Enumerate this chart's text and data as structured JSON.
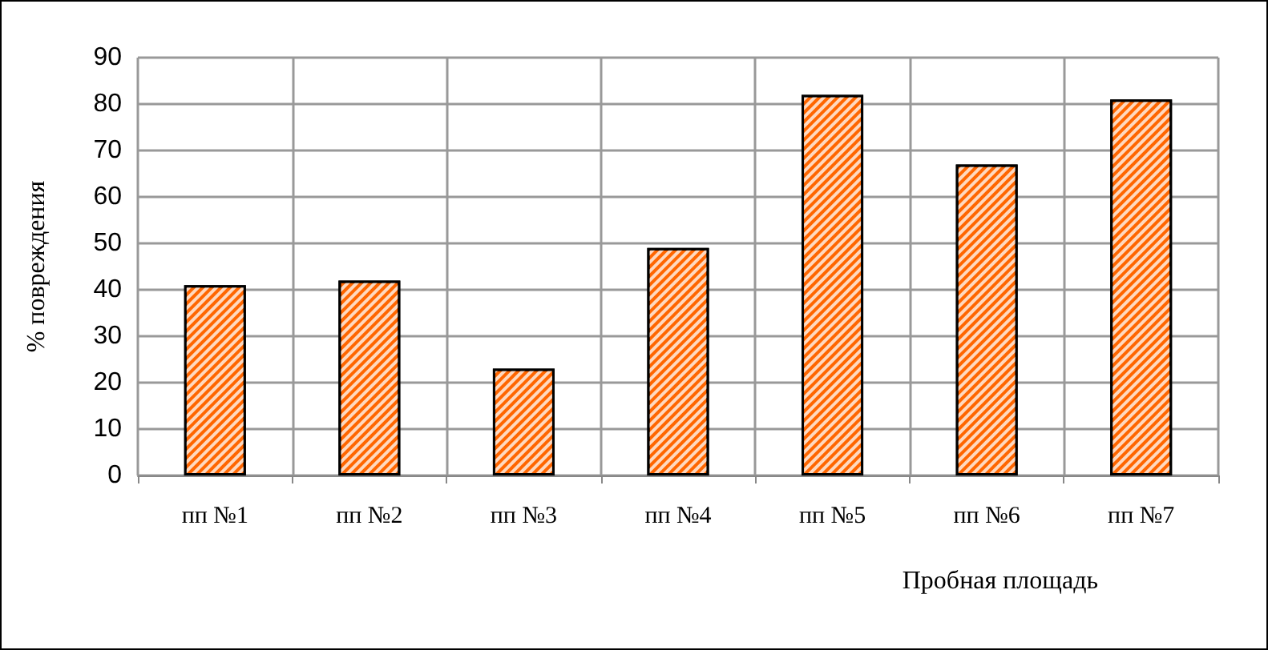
{
  "chart_data": {
    "type": "bar",
    "ylabel": "% повреждения",
    "xlabel": "Пробная площадь",
    "categories": [
      "пп №1",
      "пп №2",
      "пп №3",
      "пп №4",
      "пп №5",
      "пп №6",
      "пп №7"
    ],
    "values": [
      41,
      42,
      23,
      49,
      82,
      67,
      81
    ],
    "color": "#ff6600",
    "ylim": [
      0,
      90
    ],
    "yticks": [
      0,
      10,
      20,
      30,
      40,
      50,
      60,
      70,
      80,
      90
    ],
    "grid": true
  }
}
